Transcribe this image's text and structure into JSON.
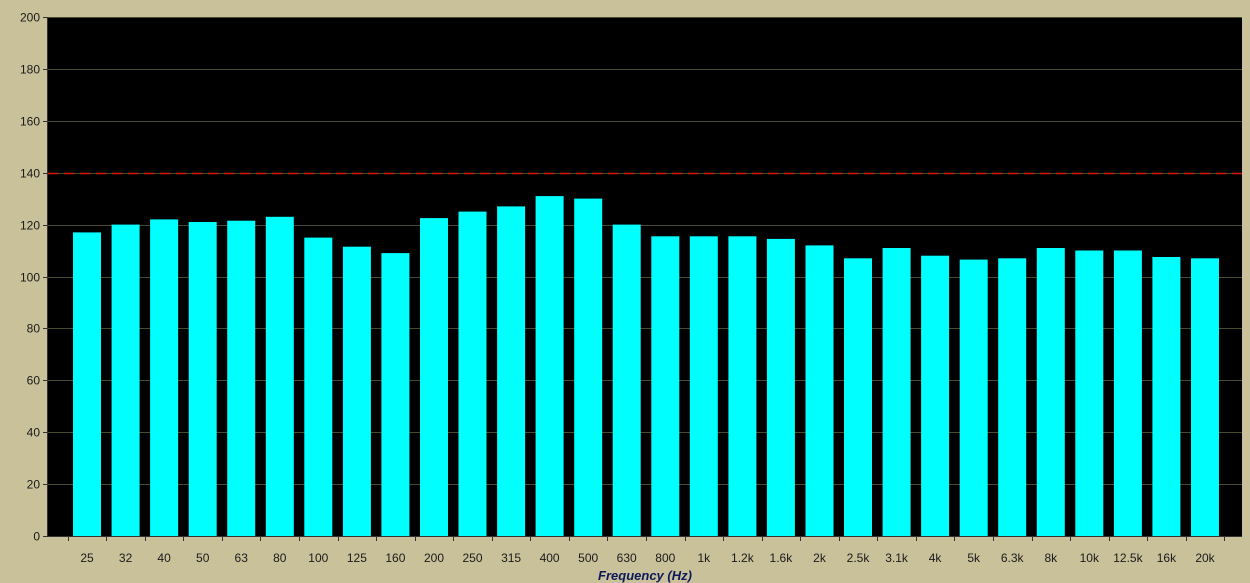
{
  "window": {
    "background": "#c9c19a",
    "plot_background": "#000000"
  },
  "chart_data": {
    "type": "bar",
    "title": "",
    "xlabel": "Frequency (Hz)",
    "ylabel": "",
    "ylim": [
      0,
      200
    ],
    "yticks": [
      0,
      20,
      40,
      60,
      80,
      100,
      120,
      140,
      160,
      180,
      200
    ],
    "grid": true,
    "categories": [
      "25",
      "32",
      "40",
      "50",
      "63",
      "80",
      "100",
      "125",
      "160",
      "200",
      "250",
      "315",
      "400",
      "500",
      "630",
      "800",
      "1k",
      "1.2k",
      "1.6k",
      "2k",
      "2.5k",
      "3.1k",
      "4k",
      "5k",
      "6.3k",
      "8k",
      "10k",
      "12.5k",
      "16k",
      "20k"
    ],
    "values": [
      117,
      120,
      122,
      121,
      121.5,
      123,
      115,
      111.5,
      109,
      122.5,
      125,
      127,
      131,
      130,
      120,
      115.5,
      115.5,
      115.5,
      114.5,
      112,
      107,
      111,
      108,
      106.5,
      107,
      111,
      110,
      110,
      107.5,
      107
    ],
    "reference_line": {
      "value": 140,
      "color": "#e01010",
      "style": "dashed"
    },
    "bar_color": "#00ffff"
  }
}
